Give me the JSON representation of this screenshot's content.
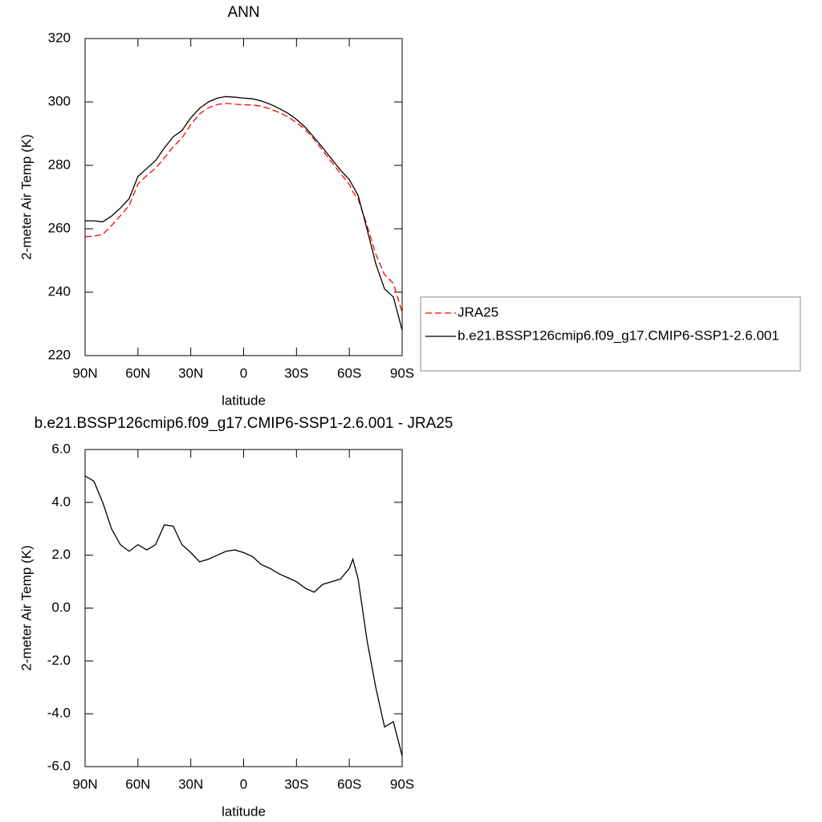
{
  "chart_data": [
    {
      "type": "line",
      "title": "ANN",
      "x_label": "latitude",
      "y_label": "2-meter Air Temp (K)",
      "x": [
        90,
        85,
        80,
        75,
        70,
        65,
        60,
        55,
        50,
        45,
        40,
        35,
        30,
        25,
        20,
        15,
        10,
        5,
        0,
        -5,
        -10,
        -15,
        -20,
        -25,
        -30,
        -35,
        -40,
        -45,
        -50,
        -55,
        -60,
        -62,
        -65,
        -70,
        -75,
        -80,
        -85,
        -90
      ],
      "series": [
        {
          "name": "JRA25",
          "color": "#ff0000",
          "dash": true,
          "values": [
            257.5,
            257.7,
            258.2,
            261,
            264.1,
            267.35,
            274.1,
            276.8,
            279.1,
            282.35,
            285.9,
            288.6,
            292.9,
            296.25,
            298.15,
            299.2,
            299.55,
            299.3,
            299.1,
            299.05,
            298.65,
            297.8,
            296.7,
            295.35,
            293.5,
            291.25,
            288.2,
            284.6,
            281,
            277.4,
            274,
            271.65,
            269.4,
            261.2,
            252,
            245.5,
            242.8,
            233.6
          ]
        },
        {
          "name": "b.e21.BSSP126cmip6.f09_g17.CMIP6-SSP1-2.6.001",
          "color": "#000000",
          "dash": false,
          "values": [
            262.5,
            262.5,
            262.2,
            264,
            266.5,
            269.5,
            276.5,
            279,
            281.5,
            285.5,
            289,
            291,
            295,
            298,
            300,
            301.2,
            301.7,
            301.5,
            301.2,
            301,
            300.3,
            299.3,
            298,
            296.5,
            294.5,
            292,
            288.8,
            285.5,
            282,
            278.5,
            275.5,
            273.5,
            270.5,
            260,
            249,
            241,
            238.5,
            228
          ]
        }
      ],
      "xlim": [
        90,
        -90
      ],
      "xticks": [
        {
          "value": 90,
          "label": "90N"
        },
        {
          "value": 60,
          "label": "60N"
        },
        {
          "value": 30,
          "label": "30N"
        },
        0,
        {
          "value": -30,
          "label": "30S"
        },
        {
          "value": -60,
          "label": "60S"
        },
        {
          "value": -90,
          "label": "90S"
        }
      ],
      "ylim": [
        220,
        320
      ],
      "yticks": [
        220,
        240,
        260,
        280,
        300,
        320
      ],
      "legend": "right"
    },
    {
      "type": "line",
      "title": "b.e21.BSSP126cmip6.f09_g17.CMIP6-SSP1-2.6.001 - JRA25",
      "x_label": "latitude",
      "y_label": "2-meter Air Temp (K)",
      "x": [
        90,
        85,
        80,
        75,
        70,
        65,
        60,
        55,
        50,
        45,
        40,
        35,
        30,
        25,
        20,
        15,
        10,
        5,
        0,
        -5,
        -10,
        -15,
        -20,
        -25,
        -30,
        -35,
        -40,
        -45,
        -50,
        -55,
        -60,
        -62,
        -65,
        -70,
        -75,
        -80,
        -85,
        -90
      ],
      "series": [
        {
          "color": "#000000",
          "dash": false,
          "values": [
            5,
            4.8,
            4,
            3,
            2.4,
            2.15,
            2.4,
            2.2,
            2.4,
            3.15,
            3.1,
            2.4,
            2.1,
            1.75,
            1.85,
            2,
            2.15,
            2.2,
            2.1,
            1.95,
            1.65,
            1.5,
            1.3,
            1.15,
            1,
            0.75,
            0.6,
            0.9,
            1,
            1.1,
            1.5,
            1.85,
            1.1,
            -1.2,
            -3,
            -4.5,
            -4.3,
            -5.6
          ]
        }
      ],
      "xlim": [
        90,
        -90
      ],
      "xticks": [
        {
          "value": 90,
          "label": "90N"
        },
        {
          "value": 60,
          "label": "60N"
        },
        {
          "value": 30,
          "label": "30N"
        },
        0,
        {
          "value": -30,
          "label": "30S"
        },
        {
          "value": -60,
          "label": "60S"
        },
        {
          "value": -90,
          "label": "90S"
        }
      ],
      "ylim": [
        -6,
        6
      ],
      "yticks": [
        {
          "value": -6,
          "label": "-6.0"
        },
        {
          "value": -4,
          "label": "-4.0"
        },
        {
          "value": -2,
          "label": "-2.0"
        },
        {
          "value": 0,
          "label": "0.0"
        },
        {
          "value": 2,
          "label": "2.0"
        },
        {
          "value": 4,
          "label": "4.0"
        },
        {
          "value": 6,
          "label": "6.0"
        }
      ]
    }
  ]
}
